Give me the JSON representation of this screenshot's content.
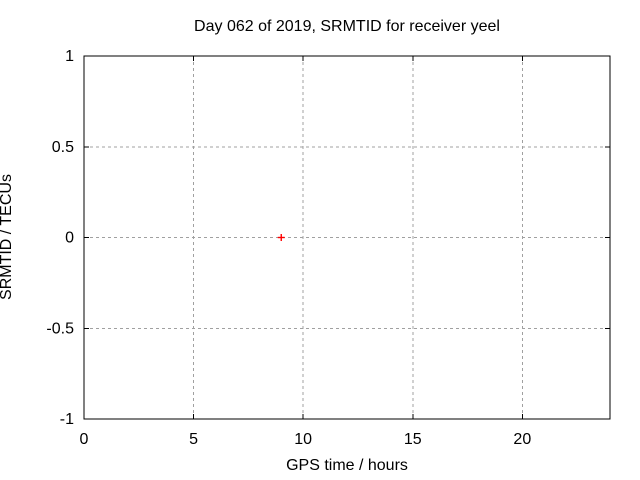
{
  "chart_data": {
    "type": "scatter",
    "title": "Day 062 of 2019, SRMTID for receiver yeel",
    "xlabel": "GPS time / hours",
    "ylabel": "SRMTID / TECUs",
    "xlim": [
      0,
      24
    ],
    "ylim": [
      -1,
      1
    ],
    "xticks": [
      0,
      5,
      10,
      15,
      20
    ],
    "xtick_labels": [
      "0",
      "5",
      "10",
      "15",
      "20"
    ],
    "yticks": [
      -1,
      -0.5,
      0,
      0.5,
      1
    ],
    "ytick_labels": [
      "-1",
      "-0.5",
      "0",
      "0.5",
      "1"
    ],
    "grid": true,
    "legend": false,
    "series": [
      {
        "name": "SRMTID",
        "marker": "plus",
        "color": "#ff0000",
        "points": [
          {
            "x": 9.0,
            "y": 0.0
          }
        ]
      }
    ],
    "colors": {
      "background": "#ffffff",
      "border": "#000000",
      "grid": "#a0a0a0",
      "text": "#000000",
      "point": "#ff0000"
    }
  }
}
